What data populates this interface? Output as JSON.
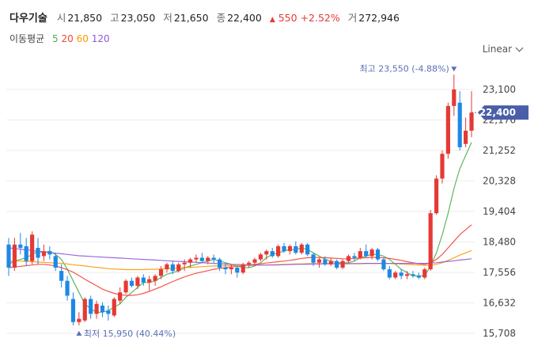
{
  "header": {
    "name": "다우기술",
    "open_label": "시",
    "open": "21,850",
    "high_label": "고",
    "high": "23,050",
    "low_label": "저",
    "low": "21,650",
    "close_label": "종",
    "close": "22,400",
    "change": "550",
    "change_pct": "+2.52%",
    "volume_label": "거",
    "volume": "272,946"
  },
  "moving_average": {
    "title": "이동평균",
    "periods": [
      "5",
      "20",
      "60",
      "120"
    ],
    "colors": [
      "#4caf50",
      "#f44336",
      "#ff9800",
      "#8e5bd9"
    ]
  },
  "scale_selector": {
    "label": "Linear"
  },
  "chart_data": {
    "type": "candlestick",
    "title": "",
    "yticks": [
      23100,
      22176,
      21252,
      20328,
      19404,
      18480,
      17556,
      16632,
      15708
    ],
    "yticks_text": [
      "23,100",
      "22,176",
      "21,252",
      "20,328",
      "19,404",
      "18,480",
      "17,556",
      "16,632",
      "15,708"
    ],
    "ylim": [
      15500,
      23900
    ],
    "current_price": 22400,
    "current_price_label": "22,400",
    "high_marker": {
      "price": 23550,
      "text": "최고 23,550 (-4.88%)"
    },
    "low_marker": {
      "price": 15950,
      "text": "최저 15,950 (40.44%)"
    },
    "up_color": "#e53935",
    "down_color": "#1e88e5",
    "candles": [
      [
        18400,
        18600,
        17450,
        17700
      ],
      [
        17700,
        18600,
        17600,
        18400
      ],
      [
        18400,
        18750,
        18100,
        18300
      ],
      [
        18350,
        18600,
        17750,
        17900
      ],
      [
        17900,
        18800,
        17800,
        18700
      ],
      [
        18300,
        18600,
        17800,
        18000
      ],
      [
        18050,
        18400,
        17900,
        18200
      ],
      [
        18200,
        18350,
        17950,
        18100
      ],
      [
        18050,
        18150,
        17600,
        17700
      ],
      [
        17600,
        17800,
        17100,
        17300
      ],
      [
        17300,
        17450,
        16700,
        16850
      ],
      [
        16750,
        16950,
        15950,
        16050
      ],
      [
        16050,
        16350,
        15950,
        16150
      ],
      [
        16100,
        16800,
        16050,
        16750
      ],
      [
        16750,
        16850,
        16150,
        16300
      ],
      [
        16300,
        16700,
        16150,
        16600
      ],
      [
        16550,
        16650,
        16200,
        16350
      ],
      [
        16400,
        16550,
        16100,
        16300
      ],
      [
        16250,
        16800,
        16200,
        16750
      ],
      [
        16700,
        17100,
        16600,
        16950
      ],
      [
        16950,
        17350,
        16900,
        17300
      ],
      [
        17300,
        17400,
        17100,
        17150
      ],
      [
        17150,
        17450,
        17050,
        17400
      ],
      [
        17400,
        17500,
        17150,
        17250
      ],
      [
        17250,
        17450,
        17000,
        17350
      ],
      [
        17300,
        17500,
        17150,
        17450
      ],
      [
        17450,
        17750,
        17350,
        17650
      ],
      [
        17650,
        17850,
        17550,
        17800
      ],
      [
        17800,
        17900,
        17500,
        17600
      ],
      [
        17600,
        17850,
        17550,
        17800
      ],
      [
        17800,
        17950,
        17600,
        17850
      ],
      [
        17850,
        18000,
        17700,
        17950
      ],
      [
        17950,
        18100,
        17850,
        18000
      ],
      [
        18000,
        18150,
        17850,
        17900
      ],
      [
        17900,
        18050,
        17800,
        18000
      ],
      [
        18000,
        18100,
        17850,
        17950
      ],
      [
        17950,
        18000,
        17600,
        17700
      ],
      [
        17700,
        17850,
        17500,
        17650
      ],
      [
        17650,
        17800,
        17500,
        17700
      ],
      [
        17700,
        17750,
        17400,
        17550
      ],
      [
        17550,
        17850,
        17500,
        17800
      ],
      [
        17800,
        17900,
        17700,
        17850
      ],
      [
        17850,
        18000,
        17750,
        17950
      ],
      [
        17950,
        18150,
        17900,
        18100
      ],
      [
        18100,
        18250,
        17950,
        18200
      ],
      [
        18200,
        18300,
        18000,
        18050
      ],
      [
        18050,
        18400,
        18000,
        18350
      ],
      [
        18350,
        18450,
        18150,
        18200
      ],
      [
        18200,
        18400,
        18100,
        18350
      ],
      [
        18350,
        18500,
        18100,
        18150
      ],
      [
        18150,
        18450,
        18100,
        18400
      ],
      [
        18400,
        18450,
        18050,
        18100
      ],
      [
        18100,
        18150,
        17750,
        17850
      ],
      [
        17850,
        18000,
        17700,
        17950
      ],
      [
        17950,
        18050,
        17750,
        17800
      ],
      [
        17800,
        18000,
        17750,
        17900
      ],
      [
        17900,
        17950,
        17650,
        17700
      ],
      [
        17700,
        17950,
        17650,
        17900
      ],
      [
        17900,
        18100,
        17850,
        18050
      ],
      [
        18050,
        18150,
        17900,
        18000
      ],
      [
        18000,
        18300,
        17950,
        18200
      ],
      [
        18200,
        18400,
        18000,
        18050
      ],
      [
        18050,
        18300,
        17950,
        18250
      ],
      [
        18250,
        18300,
        17900,
        17950
      ],
      [
        17950,
        18000,
        17600,
        17650
      ],
      [
        17650,
        17750,
        17350,
        17400
      ],
      [
        17400,
        17600,
        17350,
        17550
      ],
      [
        17550,
        17650,
        17350,
        17450
      ],
      [
        17450,
        17600,
        17350,
        17500
      ],
      [
        17500,
        17600,
        17400,
        17450
      ],
      [
        17450,
        17550,
        17350,
        17400
      ],
      [
        17400,
        17700,
        17350,
        17650
      ],
      [
        17650,
        19450,
        17600,
        19350
      ],
      [
        19350,
        20500,
        19300,
        20400
      ],
      [
        20400,
        21250,
        20250,
        21150
      ],
      [
        21150,
        22700,
        21000,
        22600
      ],
      [
        22600,
        23550,
        22300,
        23100
      ],
      [
        22700,
        23050,
        21250,
        21350
      ],
      [
        21450,
        22250,
        21350,
        21850
      ],
      [
        21850,
        23050,
        21650,
        22400
      ]
    ],
    "series": [
      {
        "name": "5",
        "color": "#4caf50",
        "values": [
          17800,
          17900,
          17950,
          18000,
          18100,
          18200,
          18150,
          18200,
          18100,
          17950,
          17650,
          17300,
          16950,
          16600,
          16450,
          16350,
          16350,
          16400,
          16500,
          16600,
          16800,
          16950,
          17100,
          17250,
          17250,
          17300,
          17400,
          17500,
          17550,
          17600,
          17700,
          17750,
          17800,
          17850,
          17900,
          17950,
          17900,
          17850,
          17800,
          17750,
          17700,
          17700,
          17750,
          17850,
          18000,
          18100,
          18150,
          18200,
          18250,
          18250,
          18300,
          18250,
          18150,
          18050,
          17950,
          17900,
          17850,
          17850,
          17850,
          17900,
          18000,
          18050,
          18100,
          18100,
          18050,
          17950,
          17800,
          17650,
          17550,
          17450,
          17450,
          17450,
          17750,
          18150,
          18700,
          19350,
          20100,
          20700,
          21100,
          21500
        ]
      },
      {
        "name": "20",
        "color": "#f44336",
        "values": [
          17700,
          17720,
          17740,
          17760,
          17780,
          17800,
          17800,
          17780,
          17750,
          17700,
          17640,
          17560,
          17460,
          17350,
          17250,
          17150,
          17050,
          16980,
          16920,
          16880,
          16860,
          16860,
          16880,
          16920,
          16980,
          17050,
          17120,
          17200,
          17280,
          17350,
          17420,
          17480,
          17530,
          17570,
          17610,
          17650,
          17680,
          17700,
          17720,
          17740,
          17760,
          17780,
          17800,
          17820,
          17840,
          17860,
          17880,
          17900,
          17920,
          17950,
          17980,
          18000,
          18010,
          18010,
          18000,
          17990,
          17980,
          17970,
          17970,
          17980,
          17990,
          18000,
          18010,
          18010,
          18000,
          17980,
          17950,
          17920,
          17880,
          17850,
          17820,
          17800,
          17850,
          17950,
          18100,
          18300,
          18500,
          18700,
          18850,
          19000
        ]
      },
      {
        "name": "60",
        "color": "#ff9800",
        "values": [
          17900,
          17900,
          17900,
          17890,
          17880,
          17870,
          17860,
          17850,
          17840,
          17830,
          17810,
          17790,
          17770,
          17750,
          17730,
          17710,
          17690,
          17670,
          17660,
          17650,
          17640,
          17640,
          17640,
          17640,
          17650,
          17650,
          17660,
          17670,
          17680,
          17690,
          17700,
          17710,
          17720,
          17730,
          17740,
          17750,
          17750,
          17760,
          17760,
          17760,
          17760,
          17770,
          17770,
          17780,
          17780,
          17790,
          17790,
          17800,
          17800,
          17810,
          17810,
          17820,
          17820,
          17820,
          17820,
          17820,
          17820,
          17820,
          17820,
          17820,
          17820,
          17830,
          17830,
          17830,
          17830,
          17830,
          17820,
          17810,
          17800,
          17790,
          17780,
          17770,
          17780,
          17800,
          17850,
          17920,
          18000,
          18080,
          18150,
          18220
        ]
      },
      {
        "name": "120",
        "color": "#8e5bd9",
        "values": [
          18300,
          18280,
          18260,
          18240,
          18220,
          18200,
          18180,
          18160,
          18140,
          18120,
          18100,
          18080,
          18060,
          18050,
          18040,
          18030,
          18020,
          18010,
          18000,
          17990,
          17980,
          17970,
          17960,
          17950,
          17940,
          17930,
          17920,
          17910,
          17900,
          17890,
          17880,
          17870,
          17860,
          17850,
          17840,
          17830,
          17820,
          17810,
          17800,
          17795,
          17790,
          17785,
          17780,
          17780,
          17780,
          17780,
          17785,
          17790,
          17795,
          17800,
          17800,
          17805,
          17810,
          17810,
          17815,
          17815,
          17820,
          17820,
          17820,
          17825,
          17825,
          17830,
          17830,
          17830,
          17830,
          17830,
          17830,
          17830,
          17830,
          17830,
          17830,
          17830,
          17840,
          17850,
          17870,
          17890,
          17910,
          17930,
          17950,
          17970
        ]
      }
    ]
  }
}
